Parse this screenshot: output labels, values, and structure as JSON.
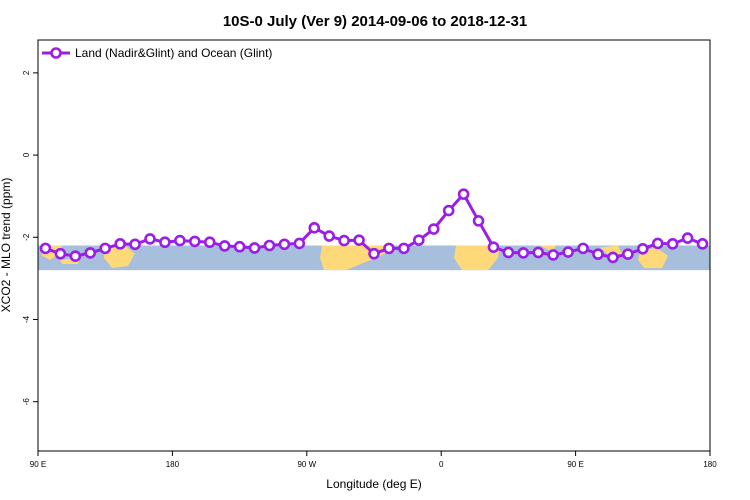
{
  "chart_data": {
    "type": "line",
    "title": "10S-0 July (Ver 9)   2014-09-06 to 2018-12-31",
    "xlabel": "Longitude (deg E)",
    "ylabel": "XCO2 - MLO trend (ppm)",
    "x_ticks": [
      {
        "value": 90,
        "label": "90 E"
      },
      {
        "value": 180,
        "label": "180"
      },
      {
        "value": 270,
        "label": "90 W"
      },
      {
        "value": 360,
        "label": "0"
      },
      {
        "value": 450,
        "label": "90 E"
      },
      {
        "value": 540,
        "label": "180"
      }
    ],
    "y_ticks": [
      2,
      0,
      -2,
      -4,
      -6
    ],
    "xlim": [
      90,
      540
    ],
    "ylim": [
      -7.2,
      2.8
    ],
    "grid": false,
    "legend_position": "top-left",
    "series_color": "#9b1ee6",
    "ocean_color": "#a7bedc",
    "land_color": "#fdd97a",
    "map_band": [
      -2.2,
      -2.8
    ],
    "series": [
      {
        "name": "Land (Nadir&Glint) and Ocean (Glint)",
        "x": [
          95,
          105,
          115,
          125,
          135,
          145,
          155,
          165,
          175,
          185,
          195,
          205,
          215,
          225,
          235,
          245,
          255,
          265,
          275,
          285,
          295,
          305,
          315,
          325,
          335,
          345,
          355,
          365,
          375,
          385,
          395,
          405,
          415,
          425,
          435,
          445,
          455,
          465,
          475,
          485,
          495,
          505,
          515,
          525,
          535
        ],
        "values": [
          -2.27,
          -2.4,
          -2.46,
          -2.38,
          -2.27,
          -2.16,
          -2.17,
          -2.04,
          -2.12,
          -2.08,
          -2.1,
          -2.12,
          -2.21,
          -2.23,
          -2.26,
          -2.2,
          -2.17,
          -2.15,
          -1.77,
          -1.97,
          -2.08,
          -2.07,
          -2.4,
          -2.27,
          -2.27,
          -2.07,
          -1.8,
          -1.35,
          -0.95,
          -1.6,
          -2.24,
          -2.37,
          -2.38,
          -2.37,
          -2.43,
          -2.36,
          -2.27,
          -2.41,
          -2.49,
          -2.41,
          -2.28,
          -2.15,
          -2.16,
          -2.02,
          -2.16
        ]
      }
    ]
  }
}
